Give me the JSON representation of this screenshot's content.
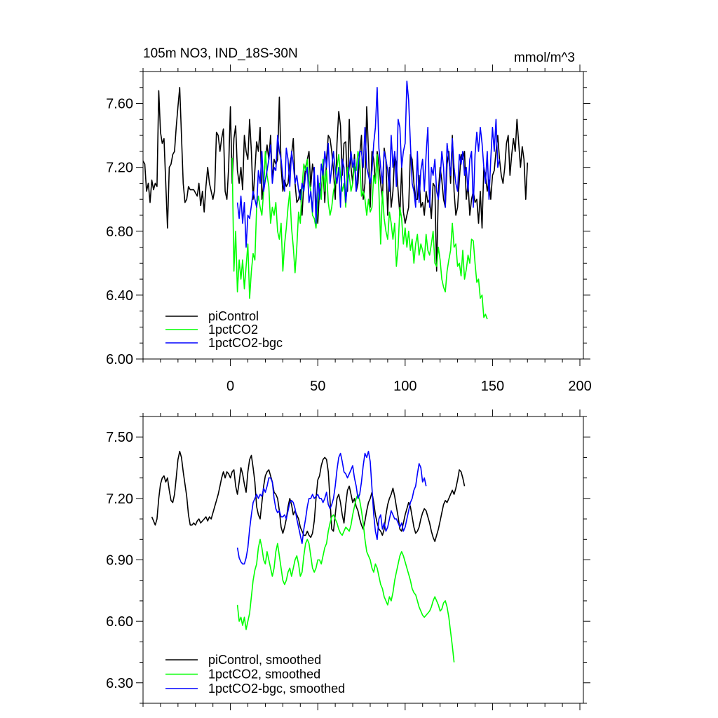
{
  "chart_data": [
    {
      "type": "line",
      "title": "105m NO3, IND_18S-30N",
      "units": "mmol/m^3",
      "xlim": [
        -50,
        202
      ],
      "ylim": [
        6.0,
        7.8
      ],
      "x_tick_labels": [
        "0",
        "50",
        "100",
        "150",
        "200"
      ],
      "y_tick_labels": [
        "6.00",
        "6.40",
        "6.80",
        "7.20",
        "7.60"
      ],
      "legend_position": "bottom-left",
      "series": [
        {
          "name": "piControl",
          "color": "#000000",
          "x_start": -50,
          "values": [
            7.24,
            7.22,
            7.05,
            7.1,
            6.98,
            7.12,
            7.06,
            7.1,
            7.08,
            7.68,
            7.42,
            7.35,
            7.38,
            7.1,
            6.82,
            7.2,
            7.22,
            7.28,
            7.3,
            7.45,
            7.58,
            7.7,
            7.4,
            7.1,
            6.98,
            7.0,
            7.08,
            7.06,
            7.06,
            7.06,
            7.04,
            7.02,
            7.1,
            6.96,
            7.05,
            6.92,
            7.08,
            7.2,
            7.1,
            7.05,
            7.0,
            7.06,
            7.42,
            7.4,
            7.3,
            7.38,
            7.44,
            7.05,
            7.0,
            7.2,
            7.58,
            7.1,
            7.38,
            7.46,
            7.18,
            7.1,
            7.2,
            7.06,
            7.4,
            7.3,
            7.25,
            7.5,
            7.3,
            7.0,
            7.18,
            7.36,
            7.3,
            7.45,
            7.0,
            7.1,
            7.26,
            7.34,
            7.25,
            7.4,
            7.12,
            7.25,
            7.22,
            7.25,
            7.64,
            7.2,
            7.05,
            7.12,
            7.08,
            7.1,
            7.22,
            7.28,
            7.38,
            7.1,
            6.98,
            7.0,
            7.06,
            6.9,
            7.1,
            7.2,
            7.25,
            7.3,
            7.08,
            7.22,
            7.15,
            6.98,
            6.85,
            7.06,
            7.05,
            7.2,
            6.98,
            7.25,
            7.4,
            7.38,
            7.3,
            7.18,
            7.0,
            7.35,
            7.55,
            7.46,
            7.15,
            7.35,
            7.36,
            7.05,
            7.5,
            7.2,
            7.1,
            7.28,
            7.05,
            7.1,
            7.28,
            7.4,
            7.0,
            7.1,
            7.58,
            7.3,
            6.95,
            7.3,
            7.25,
            7.1,
            7.3,
            7.22,
            7.1,
            7.0,
            7.32,
            7.25,
            6.9,
            7.2,
            6.95,
            7.05,
            7.28,
            7.22,
            7.05,
            6.9,
            7.2,
            6.92,
            6.85,
            6.9,
            6.95,
            7.28,
            7.25,
            7.1,
            7.0,
            7.0,
            7.15,
            6.95,
            6.98,
            6.9,
            7.05,
            6.98,
            7.0,
            6.88,
            7.1,
            7.08,
            6.55,
            7.05,
            7.2,
            7.12,
            7.0,
            6.95,
            7.22,
            7.3,
            7.1,
            7.4,
            7.05,
            6.9,
            6.95,
            7.12,
            7.28,
            7.25,
            7.3,
            7.0,
            7.1,
            6.9,
            7.0,
            7.05,
            6.98,
            7.0,
            6.85,
            7.05,
            6.82,
            7.2,
            7.15,
            7.05,
            7.12,
            7.0,
            7.15,
            7.18,
            7.3,
            7.4,
            7.25,
            7.15,
            7.1,
            7.2,
            7.35,
            7.4,
            7.15,
            7.28,
            7.38,
            7.3,
            7.5,
            7.35,
            7.2,
            7.33,
            7.25,
            7.0,
            7.23
          ]
        },
        {
          "name": "1pctCO2",
          "color": "#00ff00",
          "x_start": 1,
          "values": [
            7.26,
            6.55,
            6.8,
            6.42,
            6.62,
            6.5,
            6.62,
            6.44,
            6.58,
            6.72,
            6.38,
            6.55,
            6.66,
            6.62,
            6.95,
            7.02,
            6.95,
            6.9,
            7.05,
            7.3,
            7.15,
            7.08,
            6.85,
            6.95,
            6.9,
            6.98,
            6.8,
            6.75,
            6.85,
            6.55,
            6.72,
            6.82,
            6.95,
            7.05,
            6.82,
            6.7,
            6.54,
            6.7,
            6.92,
            6.85,
            7.08,
            7.22,
            7.18,
            7.25,
            7.12,
            7.05,
            6.9,
            6.88,
            6.82,
            6.98,
            7.1,
            7.0,
            7.25,
            7.05,
            7.18,
            6.98,
            6.9,
            6.95,
            7.05,
            7.1,
            7.2,
            7.28,
            7.15,
            7.05,
            7.1,
            6.95,
            7.2,
            7.15,
            7.05,
            7.1,
            7.22,
            7.18,
            7.3,
            7.25,
            7.02,
            7.05,
            7.0,
            6.9,
            7.0,
            6.92,
            6.95,
            7.15,
            7.1,
            7.28,
            7.05,
            6.72,
            7.05,
            6.88,
            6.8,
            6.75,
            6.92,
            6.85,
            6.75,
            6.85,
            6.58,
            6.7,
            6.95,
            6.88,
            6.72,
            6.82,
            6.7,
            6.8,
            6.68,
            6.75,
            6.6,
            6.72,
            6.78,
            6.65,
            6.72,
            6.68,
            6.62,
            6.78,
            6.68,
            6.65,
            6.72,
            6.8,
            6.6,
            6.58,
            6.7,
            6.62,
            6.5,
            6.45,
            6.42,
            6.55,
            6.62,
            6.68,
            6.85,
            6.7,
            6.72,
            6.58,
            6.6,
            6.52,
            6.68,
            6.5,
            6.56,
            6.65,
            6.6,
            6.75,
            6.74,
            6.6,
            6.48,
            6.5,
            6.38,
            6.4,
            6.26,
            6.28,
            6.25
          ]
        },
        {
          "name": "1pctCO2-bgc",
          "color": "#0000ff",
          "x_start": 4,
          "values": [
            6.98,
            6.88,
            7.02,
            6.85,
            6.98,
            6.7,
            6.9,
            6.88,
            6.96,
            7.05,
            7.0,
            6.95,
            7.18,
            7.1,
            7.3,
            7.05,
            7.12,
            7.18,
            7.25,
            7.34,
            7.1,
            7.2,
            7.18,
            7.4,
            7.3,
            7.25,
            7.14,
            7.05,
            7.32,
            7.25,
            7.08,
            7.3,
            7.22,
            7.1,
            7.15,
            7.06,
            7.0,
            7.1,
            7.05,
            7.15,
            7.2,
            6.98,
            7.05,
            6.92,
            7.2,
            6.85,
            7.15,
            7.0,
            7.22,
            7.15,
            7.3,
            7.2,
            7.35,
            7.1,
            7.2,
            7.3,
            7.18,
            7.1,
            7.2,
            6.95,
            7.25,
            7.2,
            6.98,
            7.1,
            7.2,
            7.3,
            7.2,
            7.25,
            7.05,
            7.2,
            7.3,
            7.3,
            7.2,
            7.45,
            7.2,
            7.15,
            7.1,
            7.18,
            7.35,
            7.45,
            7.7,
            7.32,
            7.2,
            7.1,
            7.3,
            7.25,
            7.18,
            7.05,
            7.4,
            7.2,
            7.3,
            7.08,
            7.5,
            7.45,
            7.2,
            7.3,
            7.35,
            7.74,
            7.62,
            7.35,
            7.1,
            7.05,
            6.95,
            7.3,
            6.98,
            7.18,
            7.25,
            7.05,
            7.28,
            7.45,
            6.95,
            7.2,
            7.15,
            7.25,
            7.05,
            7.0,
            7.12,
            7.3,
            7.2,
            6.95,
            7.35,
            7.25,
            7.15,
            7.38,
            7.2,
            7.1,
            7.05,
            7.28,
            7.22,
            7.3,
            7.15,
            7.2,
            7.05,
            7.25,
            7.3,
            6.95,
            7.28,
            7.42,
            7.3,
            7.45,
            7.35,
            7.2,
            7.1,
            7.3,
            7.0,
            7.25,
            7.45,
            7.3,
            7.5,
            7.2,
            7.25
          ]
        }
      ]
    },
    {
      "type": "line",
      "title": "",
      "xlim": [
        -50,
        202
      ],
      "ylim": [
        6.2,
        7.6
      ],
      "y_tick_labels": [
        "6.30",
        "6.60",
        "6.90",
        "7.20",
        "7.50"
      ],
      "legend_position": "bottom-left",
      "series": [
        {
          "name": "piControl, smoothed",
          "color": "#000000",
          "x_start": -45,
          "values": [
            7.11,
            7.09,
            7.07,
            7.1,
            7.2,
            7.27,
            7.3,
            7.31,
            7.28,
            7.3,
            7.24,
            7.19,
            7.18,
            7.22,
            7.3,
            7.39,
            7.43,
            7.4,
            7.33,
            7.27,
            7.21,
            7.12,
            7.07,
            7.07,
            7.08,
            7.07,
            7.09,
            7.1,
            7.08,
            7.09,
            7.1,
            7.11,
            7.09,
            7.11,
            7.1,
            7.13,
            7.16,
            7.19,
            7.22,
            7.26,
            7.3,
            7.33,
            7.3,
            7.33,
            7.32,
            7.3,
            7.33,
            7.34,
            7.26,
            7.22,
            7.28,
            7.35,
            7.32,
            7.27,
            7.23,
            7.33,
            7.39,
            7.41,
            7.35,
            7.28,
            7.16,
            7.12,
            7.1,
            7.18,
            7.26,
            7.31,
            7.33,
            7.34,
            7.31,
            7.28,
            7.23,
            7.22,
            7.2,
            7.14,
            7.06,
            7.03,
            7.06,
            7.1,
            7.16,
            7.2,
            7.17,
            7.12,
            7.14,
            7.12,
            7.1,
            7.06,
            7.04,
            7.02,
            7.02,
            7.04,
            7.02,
            7.01,
            7.03,
            7.09,
            7.2,
            7.29,
            7.31,
            7.36,
            7.39,
            7.4,
            7.39,
            7.33,
            7.19,
            7.05,
            7.04,
            7.12,
            7.2,
            7.22,
            7.18,
            7.12,
            7.08,
            7.17,
            7.24,
            7.26,
            7.22,
            7.18,
            7.2,
            7.16,
            7.14,
            7.1,
            7.07,
            7.05,
            7.09,
            7.14,
            7.18,
            7.2,
            7.23,
            7.18,
            7.12,
            7.08,
            7.05,
            7.04,
            7.02,
            7.05,
            7.12,
            7.17,
            7.2,
            7.22,
            7.25,
            7.21,
            7.16,
            7.11,
            7.05,
            7.04,
            7.08,
            7.12,
            7.15,
            7.18,
            7.16,
            7.11,
            7.06,
            7.03,
            7.04,
            7.06,
            7.1,
            7.13,
            7.15,
            7.14,
            7.11,
            7.08,
            7.04,
            7.01,
            6.99,
            7.02,
            7.05,
            7.09,
            7.13,
            7.17,
            7.19,
            7.18,
            7.2,
            7.22,
            7.24,
            7.22,
            7.25,
            7.29,
            7.34,
            7.33,
            7.3,
            7.26
          ]
        },
        {
          "name": "1pctCO2, smoothed",
          "color": "#00ff00",
          "x_start": 4,
          "values": [
            6.68,
            6.6,
            6.62,
            6.58,
            6.62,
            6.56,
            6.6,
            6.64,
            6.72,
            6.8,
            6.85,
            6.88,
            6.96,
            7.0,
            6.96,
            6.9,
            6.88,
            6.94,
            6.9,
            6.86,
            6.82,
            6.86,
            6.94,
            6.98,
            6.92,
            6.86,
            6.8,
            6.78,
            6.8,
            6.84,
            6.86,
            6.82,
            6.86,
            6.9,
            6.92,
            6.88,
            6.82,
            6.84,
            6.92,
            6.98,
            7.0,
            6.98,
            6.92,
            6.86,
            6.84,
            6.86,
            6.9,
            6.9,
            6.88,
            6.92,
            6.96,
            6.98,
            7.04,
            7.08,
            7.11,
            7.12,
            7.1,
            7.08,
            7.05,
            7.03,
            7.02,
            7.04,
            7.06,
            7.05,
            7.04,
            7.07,
            7.12,
            7.16,
            7.2,
            7.22,
            7.19,
            7.14,
            7.08,
            7.0,
            6.94,
            6.92,
            6.9,
            6.86,
            6.84,
            6.88,
            6.86,
            6.82,
            6.78,
            6.76,
            6.72,
            6.7,
            6.68,
            6.72,
            6.7,
            6.74,
            6.8,
            6.84,
            6.88,
            6.92,
            6.94,
            6.92,
            6.89,
            6.86,
            6.83,
            6.8,
            6.76,
            6.74,
            6.73,
            6.7,
            6.67,
            6.65,
            6.63,
            6.62,
            6.63,
            6.64,
            6.65,
            6.67,
            6.7,
            6.72,
            6.7,
            6.68,
            6.65,
            6.66,
            6.69,
            6.7,
            6.67,
            6.62,
            6.55,
            6.48,
            6.4
          ]
        },
        {
          "name": "1pctCO2-bgc, smoothed",
          "color": "#0000ff",
          "x_start": 4,
          "values": [
            6.96,
            6.91,
            6.89,
            6.88,
            6.88,
            6.91,
            6.96,
            7.05,
            7.12,
            7.18,
            7.2,
            7.22,
            7.2,
            7.22,
            7.21,
            7.25,
            7.23,
            7.26,
            7.3,
            7.3,
            7.28,
            7.2,
            7.15,
            7.13,
            7.14,
            7.11,
            7.11,
            7.12,
            7.1,
            7.14,
            7.18,
            7.19,
            7.18,
            7.15,
            7.1,
            7.06,
            7.02,
            6.98,
            7.05,
            7.1,
            7.16,
            7.2,
            7.2,
            7.22,
            7.2,
            7.21,
            7.22,
            7.2,
            7.2,
            7.18,
            7.2,
            7.23,
            7.17,
            7.15,
            7.17,
            7.2,
            7.26,
            7.34,
            7.4,
            7.42,
            7.38,
            7.33,
            7.32,
            7.3,
            7.32,
            7.34,
            7.36,
            7.3,
            7.26,
            7.2,
            7.22,
            7.28,
            7.36,
            7.42,
            7.4,
            7.43,
            7.38,
            7.25,
            7.12,
            7.04,
            7.0,
            7.1,
            7.12,
            7.05,
            7.08,
            7.04,
            7.06,
            7.1,
            7.14,
            7.12,
            7.1,
            7.1,
            7.08,
            7.06,
            7.08,
            7.04,
            7.06,
            7.1,
            7.14,
            7.18,
            7.2,
            7.24,
            7.26,
            7.32,
            7.37,
            7.35,
            7.28,
            7.3,
            7.26
          ]
        }
      ]
    }
  ]
}
